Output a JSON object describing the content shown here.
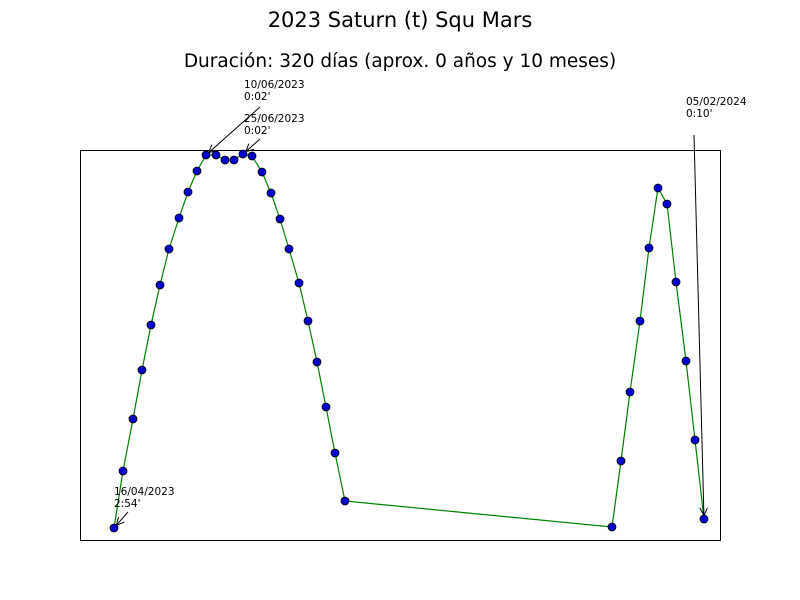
{
  "chart_data": {
    "type": "line",
    "title": "2023 Saturn (t) Squ Mars",
    "subtitle": "Duración: 320 días (aprox. 0 años y 10 meses)",
    "xlabel": "",
    "ylabel": "",
    "grid": false,
    "line_color": "#008000",
    "marker_color": "#0000cc",
    "marker_edge_color": "#000000",
    "axis_ranges": {
      "x": [
        0,
        640
      ],
      "y": [
        0,
        390
      ]
    },
    "points": [
      [
        34,
        12
      ],
      [
        43,
        69
      ],
      [
        53,
        121
      ],
      [
        62,
        170
      ],
      [
        71,
        215
      ],
      [
        80,
        255
      ],
      [
        89,
        291
      ],
      [
        99,
        322
      ],
      [
        108,
        348
      ],
      [
        117,
        369
      ],
      [
        126,
        385
      ],
      [
        136,
        385
      ],
      [
        145,
        380
      ],
      [
        154,
        380
      ],
      [
        163,
        386
      ],
      [
        172,
        384
      ],
      [
        182,
        368
      ],
      [
        191,
        347
      ],
      [
        200,
        321
      ],
      [
        209,
        291
      ],
      [
        219,
        257
      ],
      [
        228,
        219
      ],
      [
        237,
        178
      ],
      [
        246,
        133
      ],
      [
        255,
        87
      ],
      [
        265,
        39
      ],
      [
        532,
        13
      ],
      [
        541,
        79
      ],
      [
        550,
        148
      ],
      [
        560,
        219
      ],
      [
        569,
        292
      ],
      [
        578,
        352
      ],
      [
        587,
        336
      ],
      [
        596,
        258
      ],
      [
        606,
        179
      ],
      [
        615,
        100
      ],
      [
        624,
        21
      ]
    ],
    "annotations": [
      {
        "date": "16/04/2023",
        "value": "2:54'"
      },
      {
        "date": "10/06/2023",
        "value": "0:02'"
      },
      {
        "date": "25/06/2023",
        "value": "0:02'"
      },
      {
        "date": "05/02/2024",
        "value": "0:10'"
      }
    ]
  }
}
